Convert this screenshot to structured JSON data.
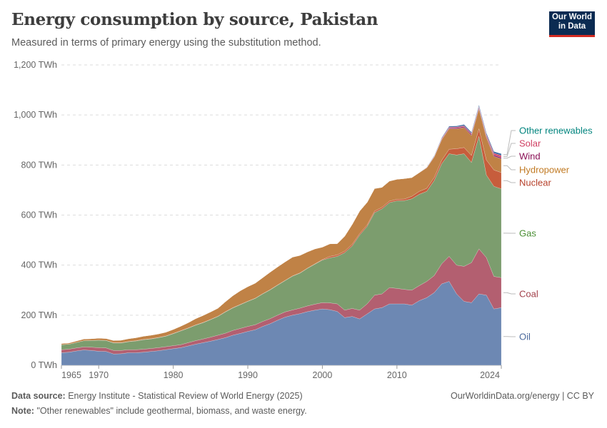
{
  "header": {
    "title": "Energy consumption by source, Pakistan",
    "subtitle": "Measured in terms of primary energy using the substitution method.",
    "logo_line1": "Our World",
    "logo_line2": "in Data"
  },
  "footer": {
    "source_label": "Data source:",
    "source_text": "Energy Institute - Statistical Review of World Energy (2025)",
    "note_label": "Note:",
    "note_text": "\"Other renewables\" include geothermal, biomass, and waste energy.",
    "link_text": "OurWorldinData.org/energy",
    "license_text": "| CC BY"
  },
  "chart_data": {
    "type": "area",
    "stacked": true,
    "title": "Energy consumption by source, Pakistan",
    "ylabel": "TWh",
    "unit": "TWh",
    "ylim": [
      0,
      1200
    ],
    "yticks": [
      0,
      200,
      400,
      600,
      800,
      1000,
      1200
    ],
    "ytick_labels": [
      "0 TWh",
      "200 TWh",
      "400 TWh",
      "600 TWh",
      "800 TWh",
      "1,000 TWh",
      "1,200 TWh"
    ],
    "xlim": [
      1965,
      2024
    ],
    "xticks": [
      1965,
      1970,
      1980,
      1990,
      2000,
      2010,
      2024
    ],
    "grid": true,
    "legend_position": "right",
    "x": [
      1965,
      1966,
      1967,
      1968,
      1969,
      1970,
      1971,
      1972,
      1973,
      1974,
      1975,
      1976,
      1977,
      1978,
      1979,
      1980,
      1981,
      1982,
      1983,
      1984,
      1985,
      1986,
      1987,
      1988,
      1989,
      1990,
      1991,
      1992,
      1993,
      1994,
      1995,
      1996,
      1997,
      1998,
      1999,
      2000,
      2001,
      2002,
      2003,
      2004,
      2005,
      2006,
      2007,
      2008,
      2009,
      2010,
      2011,
      2012,
      2013,
      2014,
      2015,
      2016,
      2017,
      2018,
      2019,
      2020,
      2021,
      2022,
      2023,
      2024
    ],
    "series": [
      {
        "name": "Oil",
        "color": "#6d88b3",
        "label_color": "#4c6a9c",
        "values": [
          50,
          52,
          57,
          61,
          59,
          56,
          55,
          45,
          46,
          50,
          50,
          52,
          55,
          58,
          62,
          66,
          70,
          77,
          84,
          90,
          96,
          103,
          110,
          120,
          127,
          135,
          142,
          155,
          166,
          180,
          192,
          200,
          206,
          214,
          220,
          225,
          222,
          215,
          190,
          195,
          185,
          205,
          225,
          230,
          245,
          245,
          245,
          240,
          258,
          270,
          290,
          325,
          335,
          285,
          255,
          250,
          285,
          280,
          225,
          230
        ]
      },
      {
        "name": "Coal",
        "color": "#b35f70",
        "label_color": "#a2404b",
        "values": [
          12,
          12,
          12,
          12,
          13,
          14,
          14,
          14,
          13,
          12,
          12,
          12,
          12,
          12,
          12,
          12,
          12,
          13,
          14,
          15,
          16,
          17,
          18,
          19,
          20,
          20,
          20,
          20,
          20,
          20,
          21,
          21,
          22,
          23,
          24,
          25,
          27,
          30,
          30,
          32,
          35,
          40,
          55,
          55,
          65,
          62,
          58,
          60,
          60,
          65,
          68,
          80,
          100,
          115,
          140,
          160,
          180,
          150,
          130,
          120
        ]
      },
      {
        "name": "Gas",
        "color": "#7c9d6e",
        "label_color": "#4b8f35",
        "values": [
          20,
          20,
          22,
          25,
          27,
          30,
          30,
          30,
          30,
          32,
          35,
          38,
          38,
          40,
          42,
          48,
          55,
          58,
          62,
          65,
          70,
          75,
          85,
          90,
          95,
          100,
          105,
          110,
          115,
          120,
          125,
          135,
          140,
          150,
          160,
          170,
          180,
          190,
          230,
          250,
          300,
          310,
          330,
          340,
          340,
          350,
          355,
          365,
          365,
          360,
          380,
          400,
          410,
          440,
          450,
          400,
          450,
          330,
          360,
          355
        ]
      },
      {
        "name": "Nuclear",
        "color": "#c75d3c",
        "label_color": "#b6402a",
        "values": [
          0,
          0,
          0,
          0,
          0,
          0,
          0,
          1,
          1,
          1,
          1,
          1,
          1,
          1,
          1,
          1,
          1,
          1,
          1,
          1,
          1,
          1,
          1,
          1,
          1,
          1,
          1,
          1,
          1,
          1,
          1,
          1,
          1,
          1,
          1,
          2,
          6,
          6,
          6,
          6,
          6,
          6,
          6,
          6,
          6,
          6,
          6,
          10,
          12,
          12,
          12,
          14,
          18,
          25,
          25,
          28,
          30,
          60,
          65,
          65
        ]
      },
      {
        "name": "Hydropower",
        "color": "#c08246",
        "label_color": "#c17a23",
        "values": [
          5,
          5,
          6,
          7,
          7,
          8,
          8,
          9,
          10,
          11,
          12,
          13,
          14,
          14,
          15,
          16,
          18,
          21,
          25,
          28,
          30,
          32,
          40,
          48,
          55,
          58,
          60,
          64,
          70,
          72,
          74,
          75,
          70,
          65,
          60,
          50,
          50,
          45,
          60,
          80,
          90,
          90,
          90,
          80,
          80,
          80,
          82,
          75,
          75,
          82,
          82,
          82,
          82,
          80,
          80,
          80,
          80,
          90,
          55,
          55
        ]
      },
      {
        "name": "Wind",
        "color": "#8a1f6a",
        "label_color": "#8a0f55",
        "values": [
          0,
          0,
          0,
          0,
          0,
          0,
          0,
          0,
          0,
          0,
          0,
          0,
          0,
          0,
          0,
          0,
          0,
          0,
          0,
          0,
          0,
          0,
          0,
          0,
          0,
          0,
          0,
          0,
          0,
          0,
          0,
          0,
          0,
          0,
          0,
          0,
          0,
          0,
          0,
          0,
          0,
          0,
          0,
          0,
          0,
          0,
          0,
          0,
          0,
          0,
          1,
          2,
          3,
          4,
          4,
          5,
          5,
          5,
          5,
          5
        ]
      },
      {
        "name": "Solar",
        "color": "#d44b67",
        "label_color": "#cf3f62",
        "values": [
          0,
          0,
          0,
          0,
          0,
          0,
          0,
          0,
          0,
          0,
          0,
          0,
          0,
          0,
          0,
          0,
          0,
          0,
          0,
          0,
          0,
          0,
          0,
          0,
          0,
          0,
          0,
          0,
          0,
          0,
          0,
          0,
          0,
          0,
          0,
          0,
          0,
          0,
          0,
          0,
          0,
          0,
          0,
          0,
          0,
          0,
          0,
          0,
          0,
          1,
          2,
          3,
          3,
          3,
          3,
          3,
          4,
          6,
          7,
          8
        ]
      },
      {
        "name": "Other renewables",
        "color": "#3e6aa2",
        "label_color": "#00847e",
        "values": [
          0,
          0,
          0,
          0,
          0,
          0,
          0,
          0,
          0,
          0,
          0,
          0,
          0,
          0,
          0,
          0,
          0,
          0,
          0,
          0,
          0,
          0,
          0,
          0,
          0,
          0,
          0,
          0,
          0,
          0,
          0,
          0,
          0,
          0,
          0,
          0,
          0,
          0,
          0,
          0,
          0,
          0,
          0,
          0,
          0,
          0,
          0,
          0,
          0,
          1,
          2,
          3,
          4,
          4,
          5,
          5,
          6,
          7,
          7,
          7
        ]
      }
    ]
  }
}
